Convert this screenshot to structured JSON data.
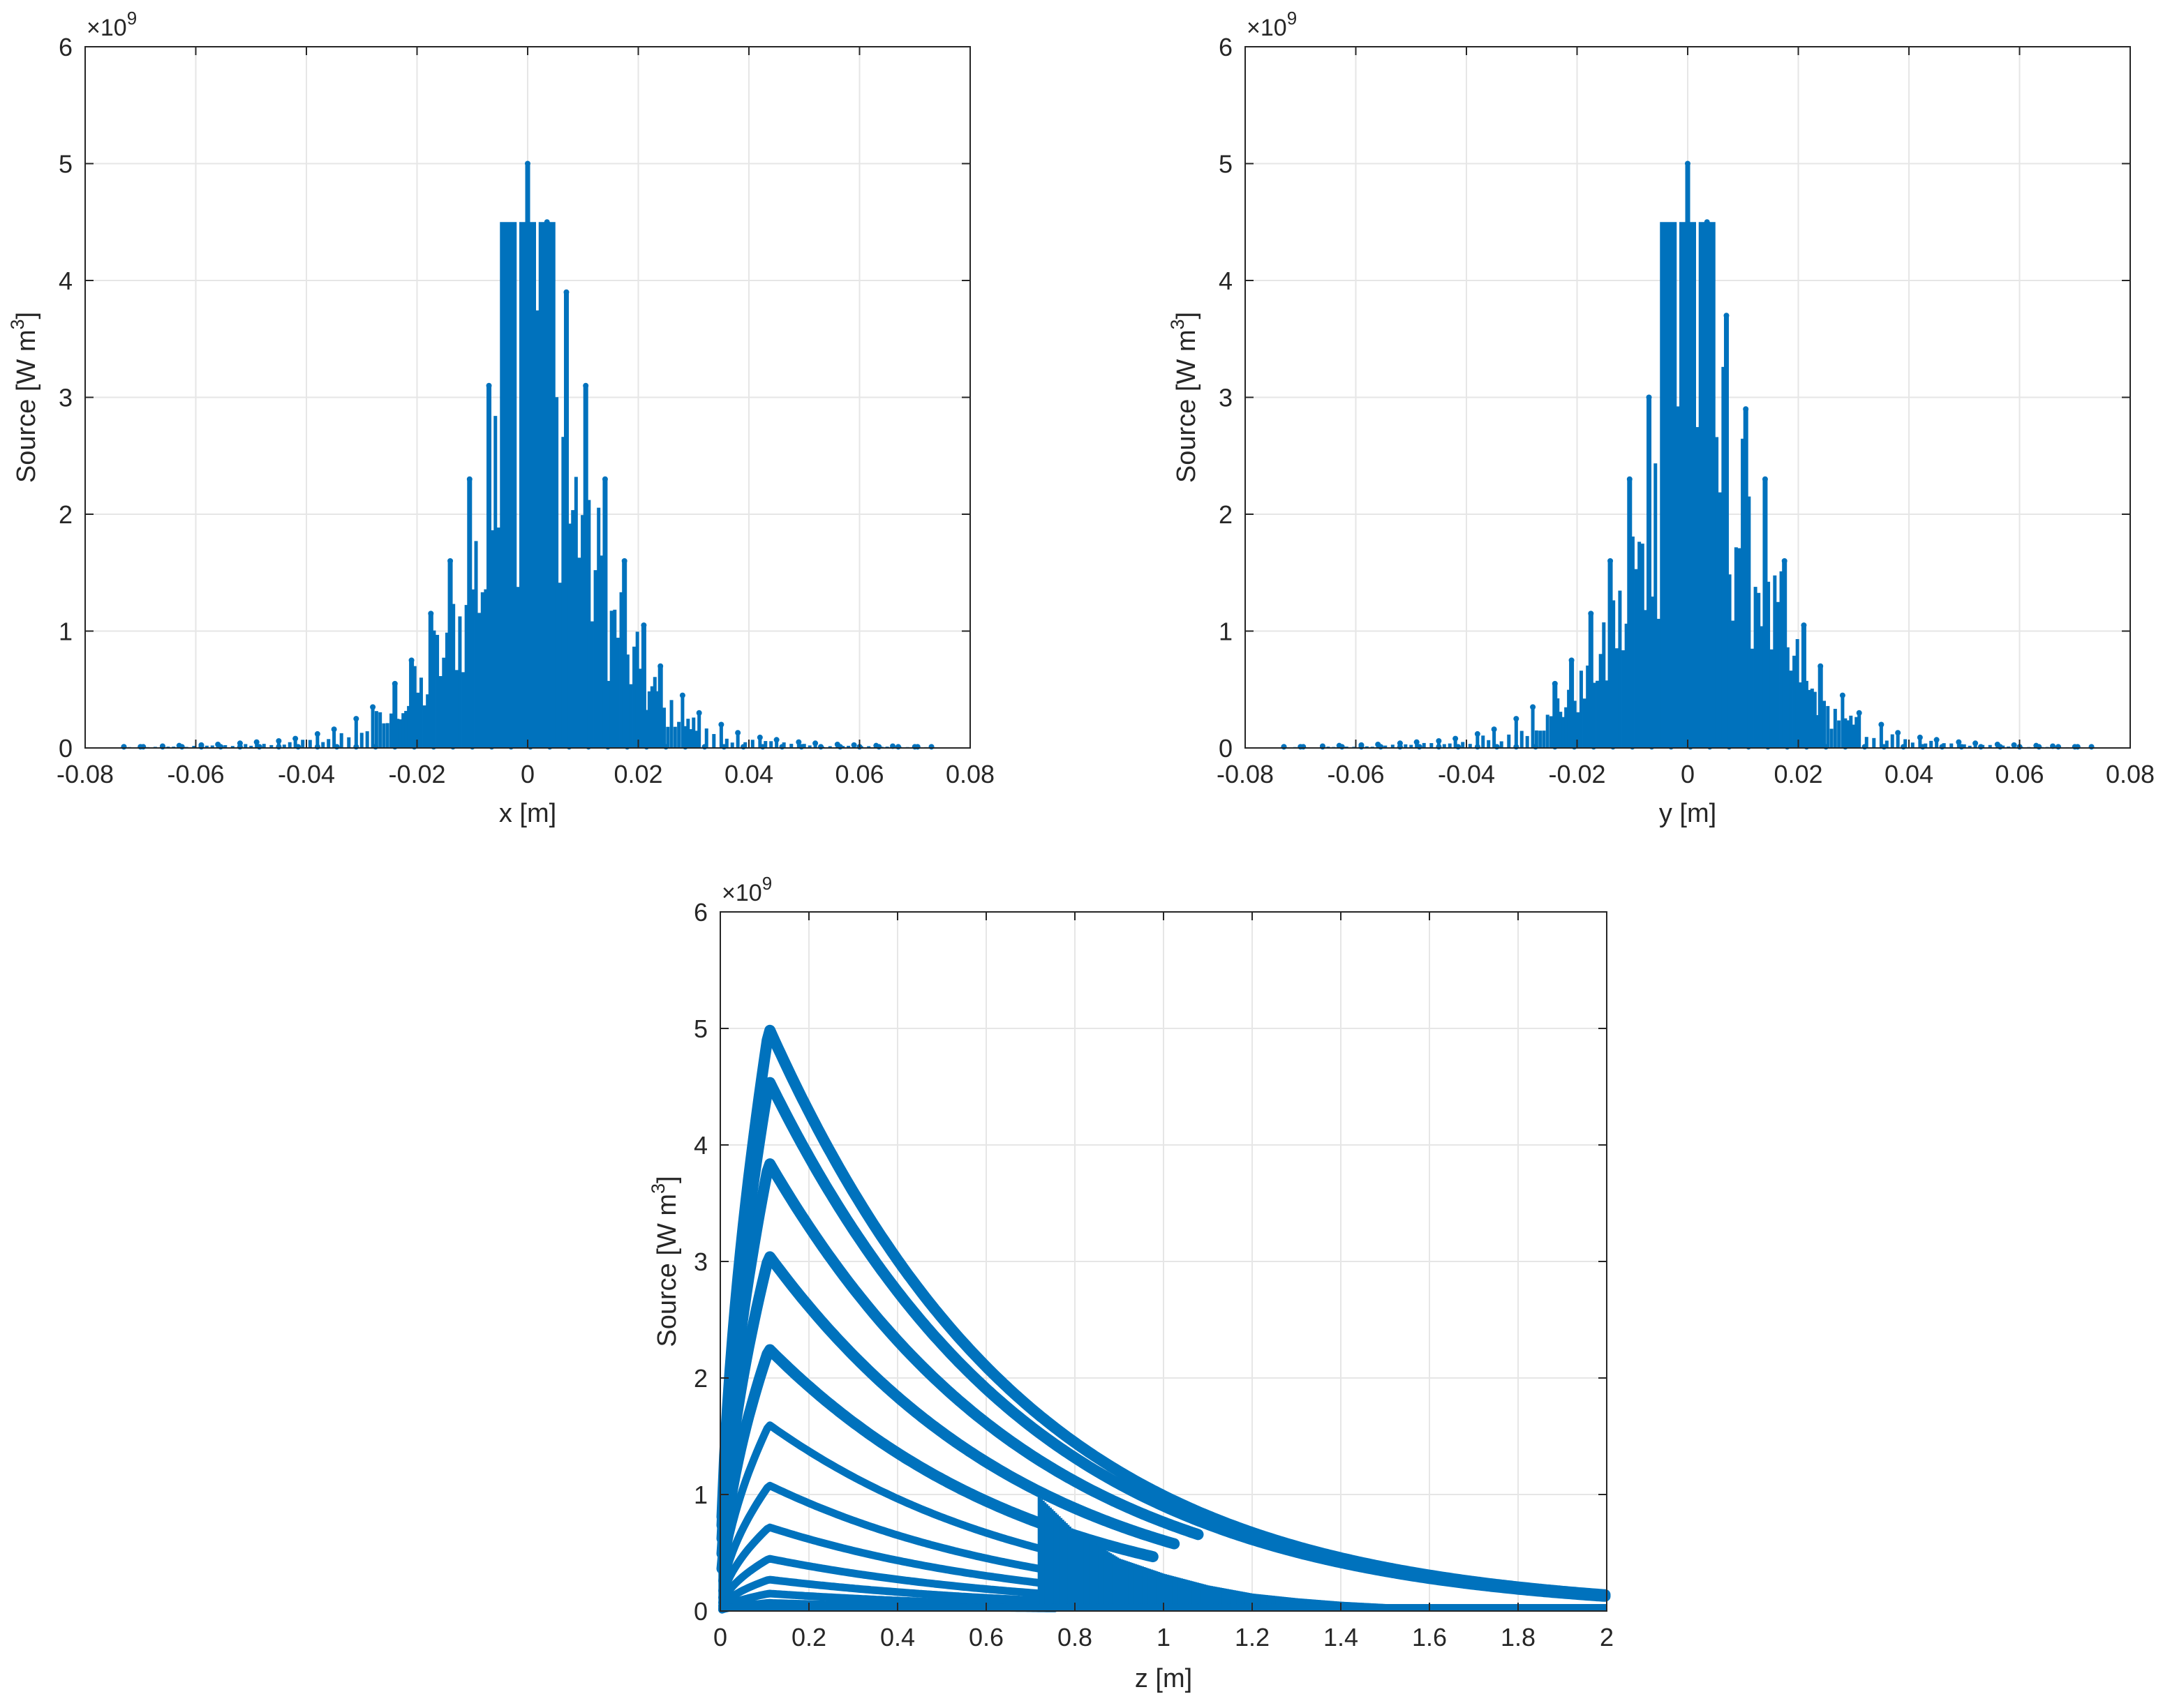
{
  "figure": {
    "marker_color": "#0072BD",
    "grid_color": "#e6e6e6",
    "axis_color": "#262626",
    "background": "#ffffff"
  },
  "chart_data": [
    {
      "type": "scatter",
      "id": "x_profile",
      "title": "",
      "xlabel": "x [m]",
      "ylabel": "Source [W m^3]",
      "ylabel_main": "Source [W m",
      "ylabel_sup": "3",
      "ylabel_close": "]",
      "exponent_label": "×10",
      "exponent_sup": "9",
      "xlim": [
        -0.08,
        0.08
      ],
      "ylim": [
        0,
        6
      ],
      "y_scale_exponent": 9,
      "x_ticks": [
        -0.08,
        -0.06,
        -0.04,
        -0.02,
        0,
        0.02,
        0.04,
        0.06,
        0.08
      ],
      "x_tick_labels": [
        "-0.08",
        "-0.06",
        "-0.04",
        "-0.02",
        "0",
        "0.02",
        "0.04",
        "0.06",
        "0.08"
      ],
      "y_ticks": [
        0,
        1,
        2,
        3,
        4,
        5,
        6
      ],
      "y_tick_labels": [
        "0",
        "1",
        "2",
        "3",
        "4",
        "5",
        "6"
      ],
      "grid": true,
      "legend": "none",
      "series": [
        {
          "marker": "dot",
          "columns_x": [
            -0.073,
            -0.07,
            -0.066,
            -0.063,
            -0.059,
            -0.056,
            -0.052,
            -0.049,
            -0.045,
            -0.042,
            -0.038,
            -0.035,
            -0.031,
            -0.028,
            -0.024,
            -0.021,
            -0.0175,
            -0.014,
            -0.0105,
            -0.007,
            -0.0035,
            0,
            0.0035,
            0.007,
            0.0105,
            0.014,
            0.0175,
            0.021,
            0.024,
            0.028,
            0.031,
            0.035,
            0.038,
            0.042,
            0.045,
            0.049,
            0.052,
            0.056,
            0.059,
            0.063,
            0.066,
            0.07,
            0.073
          ],
          "columns_max_y": [
            0.01,
            0.01,
            0.015,
            0.02,
            0.025,
            0.03,
            0.04,
            0.05,
            0.06,
            0.08,
            0.12,
            0.16,
            0.25,
            0.35,
            0.55,
            0.75,
            1.15,
            1.6,
            2.3,
            3.1,
            3.9,
            5.0,
            4.5,
            3.9,
            3.1,
            2.3,
            1.6,
            1.05,
            0.7,
            0.45,
            0.3,
            0.2,
            0.13,
            0.09,
            0.07,
            0.05,
            0.04,
            0.03,
            0.025,
            0.02,
            0.015,
            0.01,
            0.01
          ]
        }
      ]
    },
    {
      "type": "scatter",
      "id": "y_profile",
      "title": "",
      "xlabel": "y [m]",
      "ylabel": "Source [W m^3]",
      "ylabel_main": "Source [W m",
      "ylabel_sup": "3",
      "ylabel_close": "]",
      "exponent_label": "×10",
      "exponent_sup": "9",
      "xlim": [
        -0.08,
        0.08
      ],
      "ylim": [
        0,
        6
      ],
      "y_scale_exponent": 9,
      "x_ticks": [
        -0.08,
        -0.06,
        -0.04,
        -0.02,
        0,
        0.02,
        0.04,
        0.06,
        0.08
      ],
      "x_tick_labels": [
        "-0.08",
        "-0.06",
        "-0.04",
        "-0.02",
        "0",
        "0.02",
        "0.04",
        "0.06",
        "0.08"
      ],
      "y_ticks": [
        0,
        1,
        2,
        3,
        4,
        5,
        6
      ],
      "y_tick_labels": [
        "0",
        "1",
        "2",
        "3",
        "4",
        "5",
        "6"
      ],
      "grid": true,
      "legend": "none",
      "series": [
        {
          "marker": "dot",
          "columns_x": [
            -0.073,
            -0.07,
            -0.066,
            -0.063,
            -0.059,
            -0.056,
            -0.052,
            -0.049,
            -0.045,
            -0.042,
            -0.038,
            -0.035,
            -0.031,
            -0.028,
            -0.024,
            -0.021,
            -0.0175,
            -0.014,
            -0.0105,
            -0.007,
            -0.0035,
            0,
            0.0035,
            0.007,
            0.0105,
            0.014,
            0.0175,
            0.021,
            0.024,
            0.028,
            0.031,
            0.035,
            0.038,
            0.042,
            0.045,
            0.049,
            0.052,
            0.056,
            0.059,
            0.063,
            0.066,
            0.07,
            0.073
          ],
          "columns_max_y": [
            0.01,
            0.01,
            0.015,
            0.02,
            0.025,
            0.03,
            0.04,
            0.05,
            0.06,
            0.08,
            0.12,
            0.16,
            0.25,
            0.35,
            0.55,
            0.75,
            1.15,
            1.6,
            2.3,
            3.0,
            3.8,
            5.0,
            4.5,
            3.7,
            2.9,
            2.3,
            1.6,
            1.05,
            0.7,
            0.45,
            0.3,
            0.2,
            0.13,
            0.09,
            0.07,
            0.05,
            0.04,
            0.03,
            0.025,
            0.02,
            0.015,
            0.01,
            0.01
          ]
        }
      ]
    },
    {
      "type": "scatter",
      "id": "z_profile",
      "title": "",
      "xlabel": "z [m]",
      "ylabel": "Source [W m^3]",
      "ylabel_main": "Source [W m",
      "ylabel_sup": "3",
      "ylabel_close": "]",
      "exponent_label": "×10",
      "exponent_sup": "9",
      "xlim": [
        0,
        2
      ],
      "ylim": [
        0,
        6
      ],
      "y_scale_exponent": 9,
      "x_ticks": [
        0,
        0.2,
        0.4,
        0.6,
        0.8,
        1,
        1.2,
        1.4,
        1.6,
        1.8,
        2
      ],
      "x_tick_labels": [
        "0",
        "0.2",
        "0.4",
        "0.6",
        "0.8",
        "1",
        "1.2",
        "1.4",
        "1.6",
        "1.8",
        "2"
      ],
      "y_ticks": [
        0,
        1,
        2,
        3,
        4,
        5,
        6
      ],
      "y_tick_labels": [
        "0",
        "1",
        "2",
        "3",
        "4",
        "5",
        "6"
      ],
      "grid": true,
      "legend": "none",
      "series": [
        {
          "marker": "dot",
          "band_peaks": [
            5.0,
            4.55,
            3.85,
            3.05,
            2.25,
            1.6,
            1.08,
            0.72,
            0.45,
            0.27,
            0.15,
            0.07
          ],
          "peak_z": 0.11,
          "z_max": 2.0,
          "near_axis_z_end": 0.76,
          "envelope_z": [
            0,
            0.11,
            0.2,
            0.3,
            0.4,
            0.5,
            0.6,
            0.7,
            0.8,
            0.9,
            1.0,
            1.1,
            1.2,
            1.3,
            1.4,
            1.5,
            1.6,
            1.7,
            1.8,
            1.9,
            2.0
          ],
          "envelope_y": [
            0.05,
            5.0,
            4.6,
            3.9,
            3.0,
            2.2,
            1.55,
            1.05,
            0.68,
            0.45,
            0.32,
            0.22,
            0.15,
            0.11,
            0.08,
            0.06,
            0.05,
            0.04,
            0.03,
            0.02,
            0.01
          ]
        }
      ]
    }
  ]
}
